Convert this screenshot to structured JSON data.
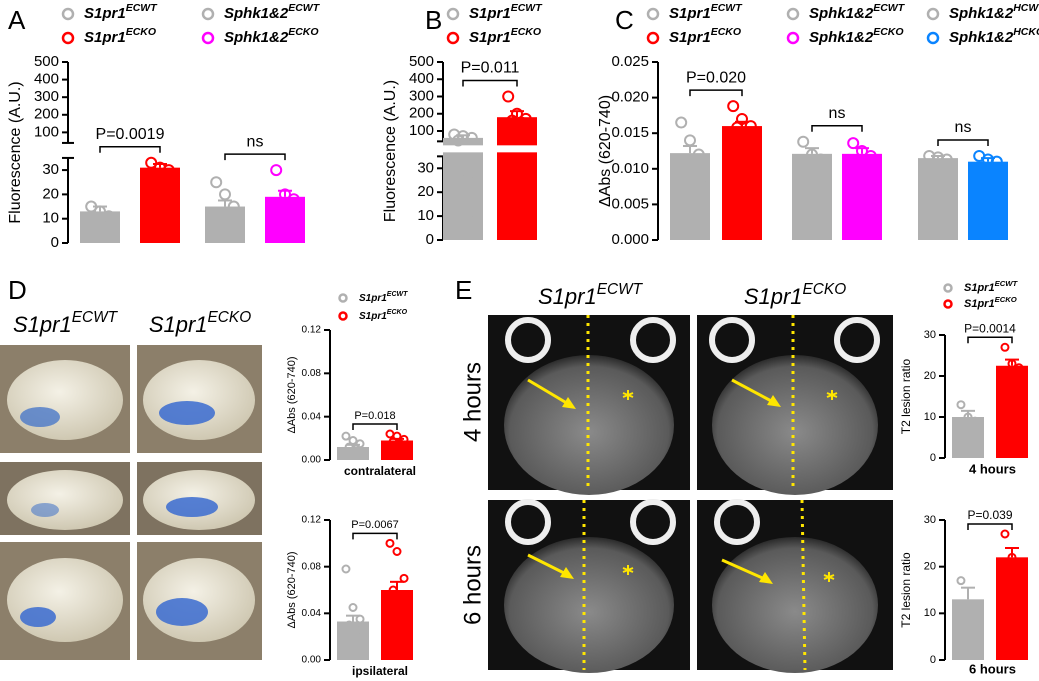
{
  "figure": {
    "panel_labels": [
      "A",
      "B",
      "C",
      "D",
      "E"
    ],
    "D_images": {
      "columns": [
        {
          "name": "S1pr1",
          "sup": "ECWT"
        },
        {
          "name": "S1pr1",
          "sup": "ECKO"
        }
      ]
    },
    "E_images": {
      "columns": [
        {
          "name": "S1pr1",
          "sup": "ECWT"
        },
        {
          "name": "S1pr1",
          "sup": "ECKO"
        }
      ],
      "rows": [
        "4 hours",
        "6 hours"
      ]
    }
  },
  "chart_data": [
    {
      "type": "bar",
      "ylabel": "Fluorescence (A.U.)",
      "ylim": [
        0,
        500
      ],
      "axis_break": [
        35,
        40
      ],
      "yticks": [
        0,
        10,
        20,
        30,
        100,
        200,
        300,
        400,
        500
      ],
      "series": [
        {
          "name": "S1pr1",
          "sup": "ECWT",
          "color": "#b0b0b0",
          "value": 13,
          "error": 2,
          "points": [
            15,
            13,
            11
          ]
        },
        {
          "name": "S1pr1",
          "sup": "ECKO",
          "color": "#ff0000",
          "value": 31,
          "error": 1.5,
          "points": [
            33,
            31,
            30
          ]
        },
        {
          "name": "Sphk1&2",
          "sup": "ECWT",
          "color": "#b0b0b0",
          "value": 15,
          "error": 2.5,
          "points": [
            25,
            20,
            15,
            12,
            9,
            8
          ]
        },
        {
          "name": "Sphk1&2",
          "sup": "ECKO",
          "color": "#ff00ff",
          "value": 19,
          "error": 2.5,
          "points": [
            30,
            20,
            18,
            16,
            15,
            14
          ]
        }
      ],
      "annotations": [
        {
          "text": "P=0.0019",
          "between": [
            0,
            1
          ]
        },
        {
          "text": "ns",
          "between": [
            2,
            3
          ]
        }
      ]
    },
    {
      "type": "bar",
      "ylabel": "Fluorescence (A.U.)",
      "ylim": [
        0,
        500
      ],
      "axis_break": [
        35,
        40
      ],
      "yticks": [
        0,
        10,
        20,
        30,
        100,
        200,
        300,
        400,
        500
      ],
      "series": [
        {
          "name": "S1pr1",
          "sup": "ECWT",
          "color": "#b0b0b0",
          "value": 60,
          "error": 15,
          "points": [
            80,
            70,
            60,
            45,
            25,
            12
          ]
        },
        {
          "name": "S1pr1",
          "sup": "ECKO",
          "color": "#ff0000",
          "value": 180,
          "error": 35,
          "points": [
            300,
            200,
            170,
            160,
            150,
            140
          ]
        }
      ],
      "annotations": [
        {
          "text": "P=0.011",
          "between": [
            0,
            1
          ]
        }
      ]
    },
    {
      "type": "bar",
      "ylabel": "ΔAbs (620-740)",
      "ylim": [
        0,
        0.025
      ],
      "yticks": [
        {
          "value": 0,
          "label": "0.000"
        },
        {
          "value": 0.005,
          "label": "0.005"
        },
        {
          "value": 0.01,
          "label": "0.010"
        },
        {
          "value": 0.015,
          "label": "0.015"
        },
        {
          "value": 0.02,
          "label": "0.020"
        },
        {
          "value": 0.025,
          "label": "0.025"
        }
      ],
      "series": [
        {
          "name": "S1pr1",
          "sup": "ECWT",
          "color": "#b0b0b0",
          "value": 0.0122,
          "error": 0.001,
          "points": [
            0.0165,
            0.014,
            0.012,
            0.011,
            0.0095,
            0.0075
          ]
        },
        {
          "name": "S1pr1",
          "sup": "ECKO",
          "color": "#ff0000",
          "value": 0.016,
          "error": 0.0006,
          "points": [
            0.0188,
            0.017,
            0.016,
            0.0158,
            0.015
          ]
        },
        {
          "name": "Sphk1&2",
          "sup": "ECWT",
          "color": "#b0b0b0",
          "value": 0.0121,
          "error": 0.0008,
          "points": [
            0.0138,
            0.012,
            0.0113,
            0.01
          ]
        },
        {
          "name": "Sphk1&2",
          "sup": "ECKO",
          "color": "#ff00ff",
          "value": 0.0121,
          "error": 0.0008,
          "points": [
            0.0136,
            0.0125,
            0.0118,
            0.0105
          ]
        },
        {
          "name": "Sphk1&2",
          "sup": "HCWT",
          "color": "#b0b0b0",
          "value": 0.0115,
          "error": 0.0003,
          "points": [
            0.0118,
            0.0116,
            0.0113
          ]
        },
        {
          "name": "Sphk1&2",
          "sup": "HCKO",
          "color": "#0a84ff",
          "value": 0.011,
          "error": 0.0005,
          "points": [
            0.0118,
            0.0113,
            0.011,
            0.0102
          ]
        }
      ],
      "annotations": [
        {
          "text": "P=0.020",
          "between": [
            0,
            1
          ]
        },
        {
          "text": "ns",
          "between": [
            2,
            3
          ]
        },
        {
          "text": "ns",
          "between": [
            4,
            5
          ]
        }
      ]
    },
    {
      "type": "bar",
      "ylabel": "ΔAbs (620-740)",
      "xlabel": "contralateral",
      "ylim": [
        0,
        0.12
      ],
      "yticks": [
        {
          "value": 0,
          "label": "0.00"
        },
        {
          "value": 0.04,
          "label": "0.04"
        },
        {
          "value": 0.08,
          "label": "0.08"
        },
        {
          "value": 0.12,
          "label": "0.12"
        }
      ],
      "series": [
        {
          "name": "S1pr1",
          "sup": "ECWT",
          "color": "#b0b0b0",
          "value": 0.012,
          "error": 0.002,
          "points": [
            0.022,
            0.018,
            0.015,
            0.012,
            0.01,
            0.008,
            0.006,
            0.005
          ]
        },
        {
          "name": "S1pr1",
          "sup": "ECKO",
          "color": "#ff0000",
          "value": 0.018,
          "error": 0.0015,
          "points": [
            0.024,
            0.022,
            0.019,
            0.017,
            0.015,
            0.014
          ]
        }
      ],
      "annotations": [
        {
          "text": "P=0.018",
          "between": [
            0,
            1
          ]
        }
      ]
    },
    {
      "type": "bar",
      "ylabel": "ΔAbs (620-740)",
      "xlabel": "ipsilateral",
      "ylim": [
        0,
        0.12
      ],
      "yticks": [
        {
          "value": 0,
          "label": "0.00"
        },
        {
          "value": 0.04,
          "label": "0.04"
        },
        {
          "value": 0.08,
          "label": "0.08"
        },
        {
          "value": 0.12,
          "label": "0.12"
        }
      ],
      "series": [
        {
          "color": "#b0b0b0",
          "value": 0.033,
          "error": 0.005,
          "points": [
            0.078,
            0.045,
            0.035,
            0.03,
            0.028,
            0.025,
            0.02,
            0.015
          ]
        },
        {
          "color": "#ff0000",
          "value": 0.06,
          "error": 0.007,
          "points": [
            0.1,
            0.093,
            0.07,
            0.06,
            0.055,
            0.04,
            0.03
          ]
        }
      ],
      "annotations": [
        {
          "text": "P=0.0067",
          "between": [
            0,
            1
          ]
        }
      ]
    },
    {
      "type": "bar",
      "ylabel": "T2 lesion ratio",
      "xlabel": "4 hours",
      "ylim": [
        0,
        30
      ],
      "yticks": [
        0,
        10,
        20,
        30
      ],
      "series": [
        {
          "name": "S1pr1",
          "sup": "ECWT",
          "color": "#b0b0b0",
          "value": 10,
          "error": 1.5,
          "points": [
            13,
            10,
            9,
            8
          ]
        },
        {
          "name": "S1pr1",
          "sup": "ECKO",
          "color": "#ff0000",
          "value": 22.5,
          "error": 1.5,
          "points": [
            27,
            23,
            22,
            19
          ]
        }
      ],
      "annotations": [
        {
          "text": "P=0.0014",
          "between": [
            0,
            1
          ]
        }
      ]
    },
    {
      "type": "bar",
      "ylabel": "T2 lesion ratio",
      "xlabel": "6 hours",
      "ylim": [
        0,
        30
      ],
      "yticks": [
        0,
        10,
        20,
        30
      ],
      "series": [
        {
          "color": "#b0b0b0",
          "value": 13,
          "error": 2.5,
          "points": [
            17,
            12,
            9
          ]
        },
        {
          "color": "#ff0000",
          "value": 22,
          "error": 2,
          "points": [
            27,
            22,
            21,
            17
          ]
        }
      ],
      "annotations": [
        {
          "text": "P=0.039",
          "between": [
            0,
            1
          ]
        }
      ]
    }
  ]
}
